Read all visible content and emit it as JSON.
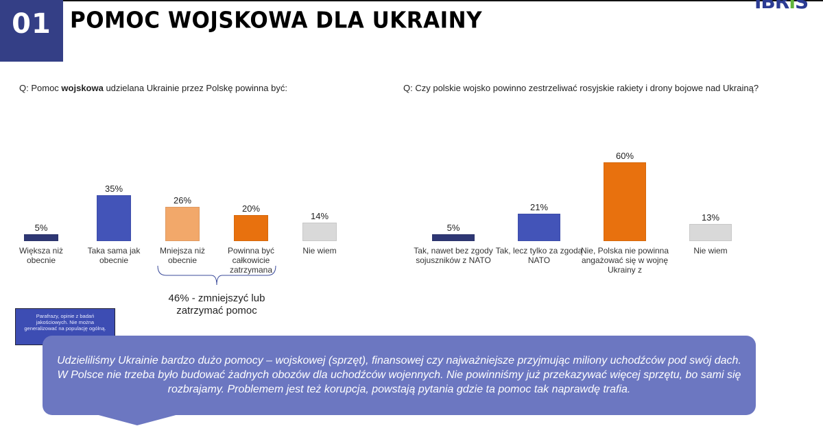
{
  "header": {
    "number": "01",
    "title": "POMOC WOJSKOWA DLA UKRAINY",
    "logo": "IBRiS"
  },
  "chart_data": [
    {
      "type": "bar",
      "title_prefix": "Q: Pomoc ",
      "title_bold": "wojskowa",
      "title_suffix": " udzielana Ukrainie przez Polskę powinna być:",
      "categories": [
        "Większa niż obecnie",
        "Taka sama jak obecnie",
        "Mniejsza niż obecnie",
        "Powinna być całkowicie zatrzymana",
        "Nie wiem"
      ],
      "values": [
        5,
        35,
        26,
        20,
        14
      ],
      "labels": [
        "5%",
        "35%",
        "26%",
        "20%",
        "14%"
      ],
      "colors": [
        "#2e3774",
        "#4354b8",
        "#f2a86a",
        "#e8710e",
        "#d9d9d9"
      ],
      "annotation": "46% - zmniejszyć lub zatrzymać pomoc"
    },
    {
      "type": "bar",
      "title": "Q: Czy polskie wojsko powinno zestrzeliwać rosyjskie rakiety i drony bojowe nad Ukrainą?",
      "categories": [
        "Tak, nawet bez zgody sojuszników z NATO",
        "Tak, lecz tylko za zgodą NATO",
        "Nie, Polska nie powinna angażować się w wojnę Ukrainy z",
        "Nie wiem"
      ],
      "values": [
        5,
        21,
        60,
        13
      ],
      "labels": [
        "5%",
        "21%",
        "60%",
        "13%"
      ],
      "colors": [
        "#2e3774",
        "#4354b8",
        "#e8710e",
        "#d9d9d9"
      ]
    }
  ],
  "note": "Parafrazy, opinie z badań jakościowych. Nie można generalizować na populację ogólną.",
  "quote": "Udzieliliśmy Ukrainie bardzo dużo pomocy – wojskowej (sprzęt), finansowej czy najważniejsze przyjmując miliony uchodźców pod swój dach. W Polsce nie trzeba było budować żadnych obozów dla uchodźców wojennych. Nie powinniśmy już przekazywać więcej sprzętu, bo sami się rozbrajamy. Problemem jest też korupcja, powstają pytania gdzie ta pomoc tak naprawdę trafia."
}
